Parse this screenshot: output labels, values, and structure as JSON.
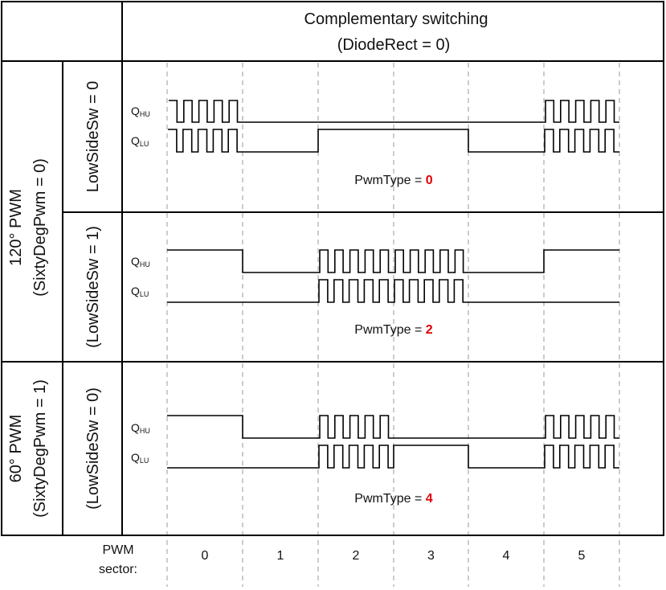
{
  "header": {
    "title_line1": "Complementary switching",
    "title_line2": "(DiodeRect = 0)"
  },
  "left_groups": [
    {
      "line1": "120° PWM",
      "line2": "(SixtyDegPwm = 0)"
    },
    {
      "line1": "60° PWM",
      "line2": "(SixtyDegPwm = 1)"
    }
  ],
  "rows": [
    {
      "side_label": "LowSideSw = 0",
      "pwm_type_label": "PwmType = ",
      "pwm_type_value": "0",
      "signal_high": {
        "main": "Q",
        "sub": "HU"
      },
      "signal_low": {
        "main": "Q",
        "sub": "LU"
      },
      "high_pattern": [
        "pwm",
        "low",
        "low",
        "low",
        "low",
        "pwm"
      ],
      "low_pattern": [
        "pwmc",
        "low",
        "high",
        "high",
        "low",
        "pwmc"
      ]
    },
    {
      "side_label": "(LowSideSw = 1)",
      "pwm_type_label": "PwmType = ",
      "pwm_type_value": "2",
      "signal_high": {
        "main": "Q",
        "sub": "HU"
      },
      "signal_low": {
        "main": "Q",
        "sub": "LU"
      },
      "high_pattern": [
        "high",
        "low",
        "pwm",
        "pwm",
        "low",
        "high"
      ],
      "low_pattern": [
        "low",
        "low",
        "pwmc",
        "pwmc",
        "low",
        "low"
      ]
    },
    {
      "side_label": "(LowSideSw = 0)",
      "pwm_type_label": "PwmType = ",
      "pwm_type_value": "4",
      "signal_high": {
        "main": "Q",
        "sub": "HU"
      },
      "signal_low": {
        "main": "Q",
        "sub": "LU"
      },
      "high_pattern": [
        "high",
        "low",
        "pwm",
        "low",
        "low",
        "pwm"
      ],
      "low_pattern": [
        "low",
        "low",
        "pwmc",
        "high",
        "low",
        "pwmc"
      ]
    }
  ],
  "footer": {
    "label_line1": "PWM",
    "label_line2": "sector:",
    "sectors": [
      "0",
      "1",
      "2",
      "3",
      "4",
      "5"
    ]
  },
  "colors": {
    "line": "#000000",
    "dash": "#aaaaaa",
    "value_accent": "#e00000"
  }
}
